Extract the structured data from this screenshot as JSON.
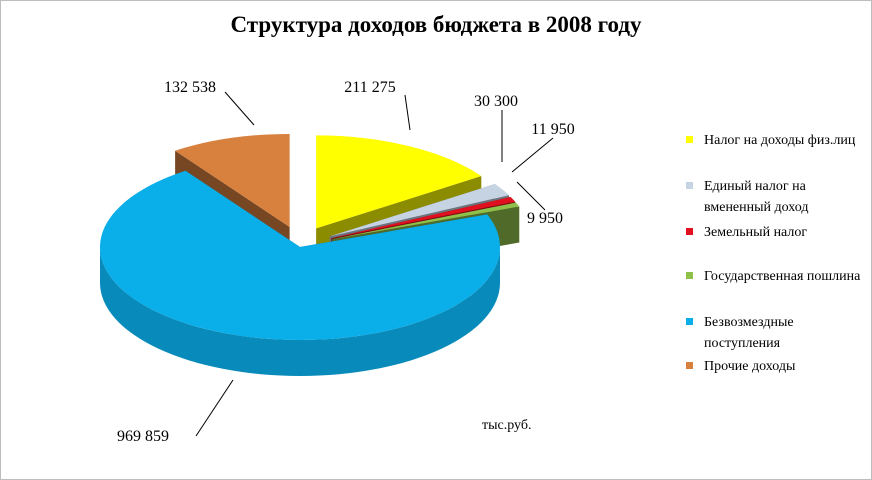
{
  "chart_data": {
    "type": "pie",
    "title": "Структура доходов бюджета в 2008 году",
    "unit_note": "тыс.руб.",
    "slices": [
      {
        "name": "Налог на доходы физ.лиц",
        "value": 211275,
        "label": "211 275",
        "color": "#ffff00"
      },
      {
        "name": "Единый налог на вмененный доход",
        "value": 30300,
        "label": "30 300",
        "color": "#c5d3e3"
      },
      {
        "name": "Земельный налог",
        "value": 11950,
        "label": "11 950",
        "color": "#e0101e"
      },
      {
        "name": "Государственная пошлина",
        "value": 9950,
        "label": "9 950",
        "color": "#8fc04a"
      },
      {
        "name": "Безвозмездные поступления",
        "value": 969859,
        "label": "969 859",
        "color": "#0aaee8"
      },
      {
        "name": "Прочие доходы",
        "value": 132538,
        "label": "132 538",
        "color": "#d8813f"
      }
    ],
    "legend_position": "right"
  }
}
